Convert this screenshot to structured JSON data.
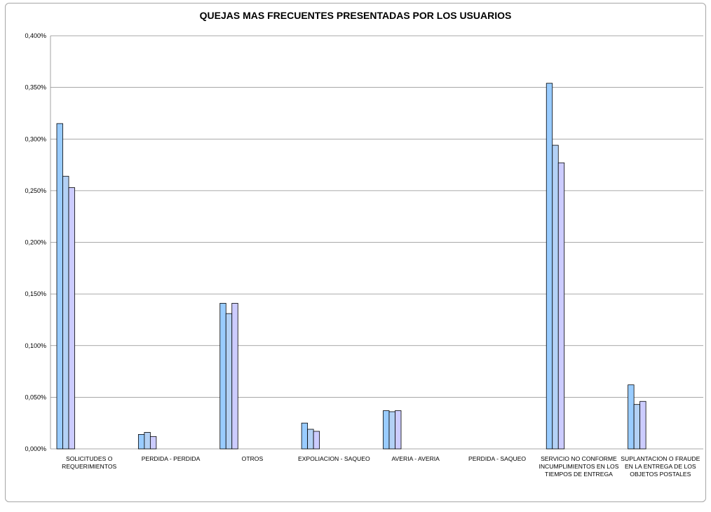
{
  "chart_data": {
    "type": "bar",
    "title": "QUEJAS MAS FRECUENTES PRESENTADAS POR LOS USUARIOS",
    "xlabel": "",
    "ylabel": "",
    "ylim": [
      0,
      0.4
    ],
    "y_ticks": [
      "0,000%",
      "0,050%",
      "0,100%",
      "0,150%",
      "0,200%",
      "0,250%",
      "0,300%",
      "0,350%",
      "0,400%"
    ],
    "grid": true,
    "legend": "none",
    "categories": [
      [
        "SOLICITUDES O",
        "REQUERIMIENTOS"
      ],
      [
        "PERDIDA - PERDIDA"
      ],
      [
        "OTROS"
      ],
      [
        "EXPOLIACION - SAQUEO"
      ],
      [
        "AVERIA - AVERIA"
      ],
      [
        "PERDIDA - SAQUEO"
      ],
      [
        "SERVICIO NO CONFORME",
        "INCUMPLIMIENTOS EN LOS",
        "TIEMPOS DE ENTREGA"
      ],
      [
        "SUPLANTACION O FRAUDE",
        "EN LA ENTREGA DE LOS",
        "OBJETOS POSTALES"
      ]
    ],
    "series": [
      {
        "color": "#99ccff",
        "values": [
          0.315,
          0.014,
          0.141,
          0.025,
          0.037,
          0.0,
          0.354,
          0.062
        ]
      },
      {
        "color": "#b3d1f5",
        "values": [
          0.264,
          0.016,
          0.131,
          0.019,
          0.036,
          0.0,
          0.294,
          0.043
        ]
      },
      {
        "color": "#ccccff",
        "values": [
          0.253,
          0.012,
          0.141,
          0.017,
          0.037,
          0.0,
          0.277,
          0.046
        ]
      }
    ]
  }
}
